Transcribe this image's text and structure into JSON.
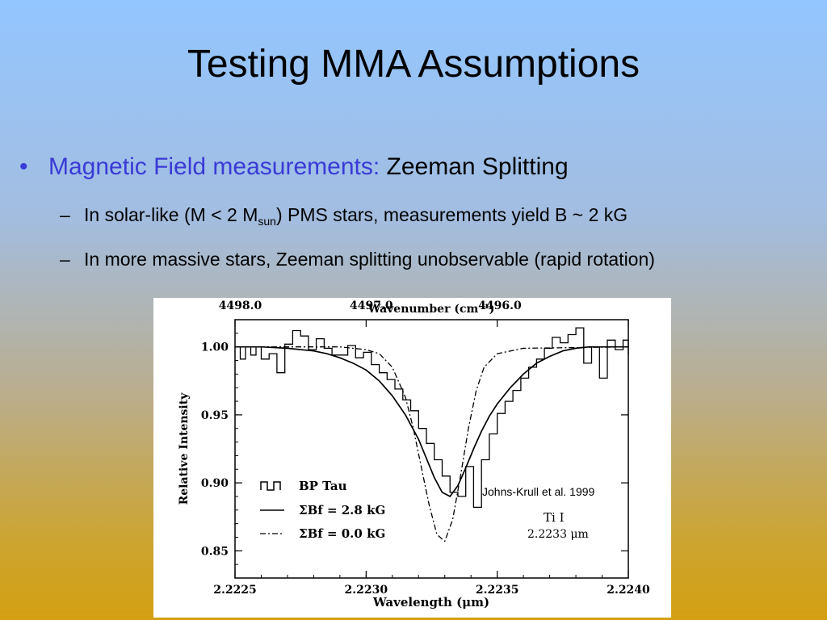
{
  "slide": {
    "title": "Testing MMA Assumptions",
    "bullet_symbol": "•",
    "bullet_label": "Magnetic Field measurements:",
    "bullet_value": "Zeeman Splitting",
    "sub_dash": "–",
    "sub1_pre": "In solar-like (M < 2 M",
    "sub1_subscript": "sun",
    "sub1_post": ") PMS stars, measurements yield B ~ 2 kG",
    "sub2": "In more massive stars, Zeeman splitting unobservable (rapid rotation)",
    "accent_color": "#3a3ad6"
  },
  "chart_data": {
    "type": "line",
    "xlabel": "Wavelength (μm)",
    "ylabel": "Relative Intensity",
    "top_axis_label": "Wavenumber (cm⁻¹)",
    "xlim": [
      2.2225,
      2.224
    ],
    "ylim": [
      0.83,
      1.02
    ],
    "x_ticks": [
      "2.2225",
      "2.2230",
      "2.2235",
      "2.2240"
    ],
    "y_ticks": [
      "0.85",
      "0.90",
      "0.95",
      "1.00"
    ],
    "top_ticks": [
      "4498.0",
      "4497.0",
      "4496.0"
    ],
    "top_tick_x": [
      2.22252,
      2.22302,
      2.22351
    ],
    "legend_placement": "bottom-left",
    "series": [
      {
        "name": "BP Tau",
        "style": "step",
        "x": [
          2.2225,
          2.22252,
          2.22254,
          2.22256,
          2.22258,
          2.2226,
          2.22263,
          2.22266,
          2.22269,
          2.22272,
          2.22275,
          2.22278,
          2.22281,
          2.22284,
          2.22287,
          2.2229,
          2.22293,
          2.22296,
          2.22299,
          2.22302,
          2.22305,
          2.22308,
          2.22311,
          2.22314,
          2.22317,
          2.2232,
          2.22323,
          2.22326,
          2.22329,
          2.22332,
          2.22335,
          2.22338,
          2.22341,
          2.22344,
          2.22347,
          2.2235,
          2.22353,
          2.22356,
          2.22359,
          2.22362,
          2.22365,
          2.22368,
          2.22371,
          2.22374,
          2.22377,
          2.2238,
          2.22383,
          2.22386,
          2.22389,
          2.22392,
          2.22395,
          2.22398,
          2.224
        ],
        "values": [
          1.0,
          0.991,
          1.0,
          0.994,
          1.0,
          0.991,
          0.995,
          0.981,
          1.002,
          1.012,
          1.008,
          0.998,
          1.006,
          0.999,
          0.994,
          0.994,
          1.001,
          0.992,
          0.996,
          0.987,
          0.981,
          0.976,
          0.969,
          0.961,
          0.953,
          0.94,
          0.929,
          0.917,
          0.905,
          0.893,
          0.89,
          0.912,
          0.882,
          0.917,
          0.936,
          0.951,
          0.96,
          0.968,
          0.977,
          0.985,
          0.991,
          0.999,
          1.007,
          1.003,
          1.009,
          1.014,
          0.988,
          1.0,
          0.977,
          1.005,
          0.998,
          1.005,
          0.994
        ]
      },
      {
        "name": "ΣBf = 2.8 kG",
        "style": "solid",
        "x": [
          2.2225,
          2.2226,
          2.2227,
          2.2228,
          2.22285,
          2.2229,
          2.22295,
          2.223,
          2.22305,
          2.2231,
          2.22315,
          2.2232,
          2.22323,
          2.22326,
          2.22329,
          2.22332,
          2.22335,
          2.22338,
          2.22341,
          2.22344,
          2.22347,
          2.2235,
          2.22355,
          2.2236,
          2.22365,
          2.2237,
          2.22375,
          2.2238,
          2.22385,
          2.2239,
          2.224
        ],
        "values": [
          1.0,
          1.0,
          0.999,
          0.997,
          0.995,
          0.992,
          0.988,
          0.983,
          0.975,
          0.964,
          0.95,
          0.932,
          0.918,
          0.904,
          0.893,
          0.89,
          0.898,
          0.911,
          0.925,
          0.938,
          0.949,
          0.958,
          0.97,
          0.98,
          0.988,
          0.993,
          0.997,
          0.999,
          1.0,
          1.0,
          1.0
        ]
      },
      {
        "name": "ΣBf = 0.0 kG",
        "style": "dashdot",
        "x": [
          2.2225,
          2.2229,
          2.223,
          2.22305,
          2.2231,
          2.22315,
          2.22318,
          2.22321,
          2.22324,
          2.22327,
          2.2233,
          2.22333,
          2.22336,
          2.22339,
          2.22342,
          2.22345,
          2.2235,
          2.2236,
          2.224
        ],
        "values": [
          1.0,
          1.0,
          0.998,
          0.995,
          0.985,
          0.963,
          0.94,
          0.912,
          0.884,
          0.862,
          0.857,
          0.873,
          0.905,
          0.94,
          0.968,
          0.985,
          0.995,
          0.999,
          1.0
        ]
      }
    ],
    "annotations": {
      "credit": "Johns-Krull et al. 1999",
      "species": "Ti I",
      "line_center": "2.2233 μm"
    }
  }
}
